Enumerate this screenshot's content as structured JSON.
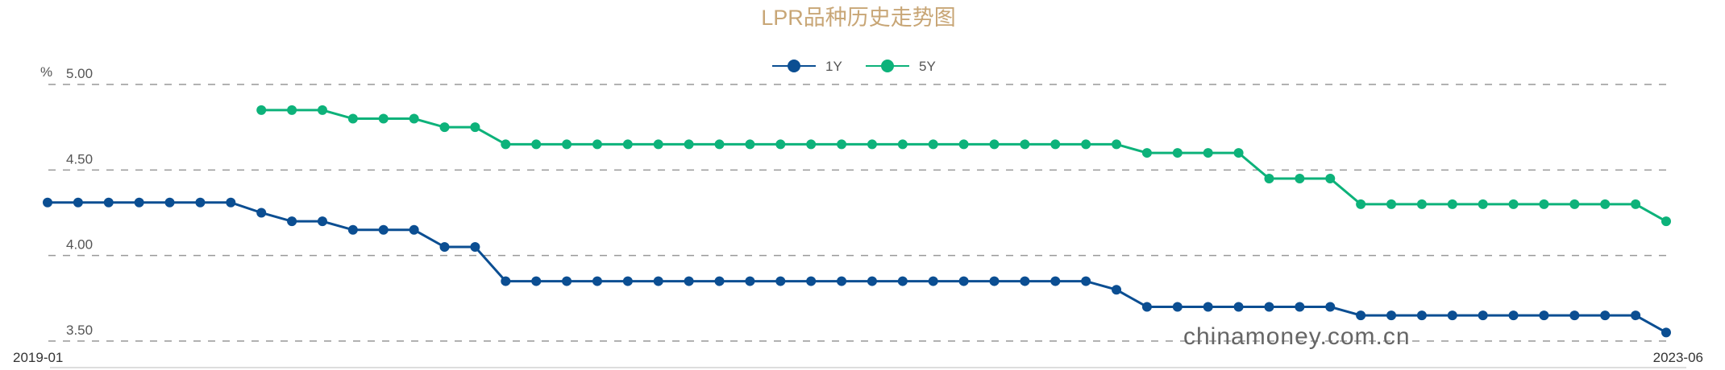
{
  "chart_data": {
    "type": "line",
    "title": "LPR品种历史走势图",
    "ylabel": "%",
    "ylim": [
      3.5,
      5.0
    ],
    "yticks": [
      "5.00",
      "4.50",
      "4.00",
      "3.50"
    ],
    "ytick_values": [
      5.0,
      4.5,
      4.0,
      3.5
    ],
    "x_start_label": "2019-01",
    "x_end_label": "2023-06",
    "grid": true,
    "legend": "top-center",
    "watermark": "chinamoney.com.cn",
    "x": [
      "2019-01",
      "2019-02",
      "2019-03",
      "2019-04",
      "2019-05",
      "2019-06",
      "2019-07",
      "2019-08",
      "2019-09",
      "2019-10",
      "2019-11",
      "2019-12",
      "2020-01",
      "2020-02",
      "2020-03",
      "2020-04",
      "2020-05",
      "2020-06",
      "2020-07",
      "2020-08",
      "2020-09",
      "2020-10",
      "2020-11",
      "2020-12",
      "2021-01",
      "2021-02",
      "2021-03",
      "2021-04",
      "2021-05",
      "2021-06",
      "2021-07",
      "2021-08",
      "2021-09",
      "2021-10",
      "2021-11",
      "2021-12",
      "2022-01",
      "2022-02",
      "2022-03",
      "2022-04",
      "2022-05",
      "2022-06",
      "2022-07",
      "2022-08",
      "2022-09",
      "2022-10",
      "2022-11",
      "2022-12",
      "2023-01",
      "2023-02",
      "2023-03",
      "2023-04",
      "2023-05",
      "2023-06"
    ],
    "series": [
      {
        "name": "1Y",
        "color": "#0b4e92",
        "values": [
          4.31,
          4.31,
          4.31,
          4.31,
          4.31,
          4.31,
          4.31,
          4.25,
          4.2,
          4.2,
          4.15,
          4.15,
          4.15,
          4.05,
          4.05,
          3.85,
          3.85,
          3.85,
          3.85,
          3.85,
          3.85,
          3.85,
          3.85,
          3.85,
          3.85,
          3.85,
          3.85,
          3.85,
          3.85,
          3.85,
          3.85,
          3.85,
          3.85,
          3.85,
          3.85,
          3.8,
          3.7,
          3.7,
          3.7,
          3.7,
          3.7,
          3.7,
          3.7,
          3.65,
          3.65,
          3.65,
          3.65,
          3.65,
          3.65,
          3.65,
          3.65,
          3.65,
          3.65,
          3.55
        ]
      },
      {
        "name": "5Y",
        "color": "#0db27a",
        "values": [
          null,
          null,
          null,
          null,
          null,
          null,
          null,
          4.85,
          4.85,
          4.85,
          4.8,
          4.8,
          4.8,
          4.75,
          4.75,
          4.65,
          4.65,
          4.65,
          4.65,
          4.65,
          4.65,
          4.65,
          4.65,
          4.65,
          4.65,
          4.65,
          4.65,
          4.65,
          4.65,
          4.65,
          4.65,
          4.65,
          4.65,
          4.65,
          4.65,
          4.65,
          4.6,
          4.6,
          4.6,
          4.6,
          4.45,
          4.45,
          4.45,
          4.3,
          4.3,
          4.3,
          4.3,
          4.3,
          4.3,
          4.3,
          4.3,
          4.3,
          4.3,
          4.2
        ]
      }
    ]
  }
}
